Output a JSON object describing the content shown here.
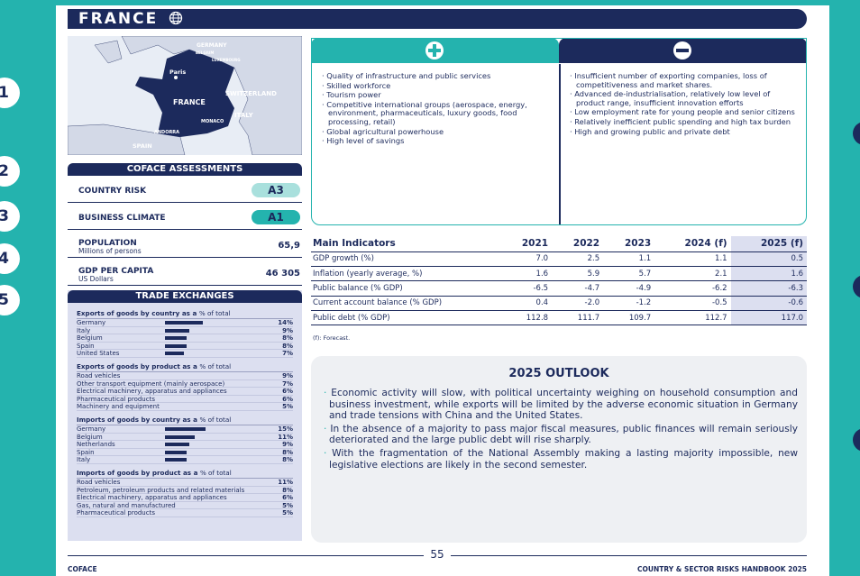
{
  "header": {
    "title": "FRANCE"
  },
  "side_numbers": [
    "1",
    "2",
    "3",
    "4",
    "5"
  ],
  "map": {
    "labels": [
      "GERMANY",
      "BELGIUM",
      "LUXEMBOURG",
      "Paris",
      "FRANCE",
      "SWITZERLAND",
      "ITALY",
      "MONACO",
      "ANDORRA",
      "SPAIN"
    ]
  },
  "assessments": {
    "title": "COFACE ASSESSMENTS",
    "rows": [
      {
        "label": "COUNTRY RISK",
        "value": "A3"
      },
      {
        "label": "BUSINESS CLIMATE",
        "value": "A1"
      },
      {
        "label": "POPULATION",
        "sub": "Millions of persons",
        "value": "65,9"
      },
      {
        "label": "GDP PER CAPITA",
        "sub": "US Dollars",
        "value": "46 305"
      }
    ]
  },
  "trade": {
    "title": "TRADE EXCHANGES",
    "sections": [
      {
        "title": "Exports of goods by country as a",
        "unit": "% of total",
        "bars": true,
        "items": [
          {
            "name": "Germany",
            "value": 14,
            "label": "14%"
          },
          {
            "name": "Italy",
            "value": 9,
            "label": "9%"
          },
          {
            "name": "Belgium",
            "value": 8,
            "label": "8%"
          },
          {
            "name": "Spain",
            "value": 8,
            "label": "8%"
          },
          {
            "name": "United States",
            "value": 7,
            "label": "7%"
          }
        ]
      },
      {
        "title": "Exports of goods by product as a",
        "unit": "% of total",
        "bars": false,
        "items": [
          {
            "name": "Road vehicles",
            "value": 9,
            "label": "9%"
          },
          {
            "name": "Other transport equipment (mainly aerospace)",
            "value": 7,
            "label": "7%"
          },
          {
            "name": "Electrical machinery, apparatus and appliances",
            "value": 6,
            "label": "6%"
          },
          {
            "name": "Pharmaceutical products",
            "value": 6,
            "label": "6%"
          },
          {
            "name": "Machinery and equipment",
            "value": 5,
            "label": "5%"
          }
        ]
      },
      {
        "title": "Imports of goods by country as a",
        "unit": "% of total",
        "bars": true,
        "items": [
          {
            "name": "Germany",
            "value": 15,
            "label": "15%"
          },
          {
            "name": "Belgium",
            "value": 11,
            "label": "11%"
          },
          {
            "name": "Netherlands",
            "value": 9,
            "label": "9%"
          },
          {
            "name": "Spain",
            "value": 8,
            "label": "8%"
          },
          {
            "name": "Italy",
            "value": 8,
            "label": "8%"
          }
        ]
      },
      {
        "title": "Imports of goods by product as a",
        "unit": "% of total",
        "bars": false,
        "items": [
          {
            "name": "Road vehicles",
            "value": 11,
            "label": "11%"
          },
          {
            "name": "Petroleum, petroleum products and related materials",
            "value": 8,
            "label": "8%"
          },
          {
            "name": "Electrical machinery, apparatus and appliances",
            "value": 6,
            "label": "6%"
          },
          {
            "name": "Gas, natural and manufactured",
            "value": 5,
            "label": "5%"
          },
          {
            "name": "Pharmaceutical products",
            "value": 5,
            "label": "5%"
          }
        ]
      }
    ]
  },
  "strengths": [
    "Quality of infrastructure and public services",
    "Skilled workforce",
    "Tourism power",
    "Competitive international groups (aerospace, energy, environment, pharmaceuticals, luxury goods, food processing, retail)",
    "Global agricultural powerhouse",
    "High level of savings"
  ],
  "weaknesses": [
    "Insufficient number of exporting companies, loss of competitiveness and market shares.",
    "Advanced de-industrialisation, relatively low level of product range, insufficient innovation efforts",
    "Low employment rate for young people and senior citizens",
    "Relatively inefficient public spending and high tax burden",
    "High and growing public and private debt"
  ],
  "indicators": {
    "title": "Main Indicators",
    "columns": [
      "2021",
      "2022",
      "2023",
      "2024 (f)",
      "2025 (f)"
    ],
    "rows": [
      {
        "label": "GDP growth (%)",
        "values": [
          "7.0",
          "2.5",
          "1.1",
          "1.1",
          "0.5"
        ]
      },
      {
        "label": "Inflation (yearly average, %)",
        "values": [
          "1.6",
          "5.9",
          "5.7",
          "2.1",
          "1.6"
        ]
      },
      {
        "label": "Public balance (% GDP)",
        "values": [
          "-6.5",
          "-4.7",
          "-4.9",
          "-6.2",
          "-6.3"
        ]
      },
      {
        "label": "Current account balance (% GDP)",
        "values": [
          "0.4",
          "-2.0",
          "-1.2",
          "-0.5",
          "-0.6"
        ]
      },
      {
        "label": "Public debt (% GDP)",
        "values": [
          "112.8",
          "111.7",
          "109.7",
          "112.7",
          "117.0"
        ]
      }
    ],
    "note": "(f): Forecast."
  },
  "outlook": {
    "title": "2025 OUTLOOK",
    "items": [
      "Economic activity will slow, with political uncertainty weighing on household consumption and business investment, while exports will be limited by the adverse economic situation in Germany and trade tensions with China and the United States.",
      "In the absence of a majority to pass major fiscal measures, public finances will remain seriously deteriorated and the large public debt will rise sharply.",
      "With the fragmentation of the National Assembly making a lasting majority impossible, new legislative elections are likely in the second semester."
    ]
  },
  "footer": {
    "page": "55",
    "left": "COFACE",
    "right": "COUNTRY & SECTOR RISKS HANDBOOK 2025"
  }
}
